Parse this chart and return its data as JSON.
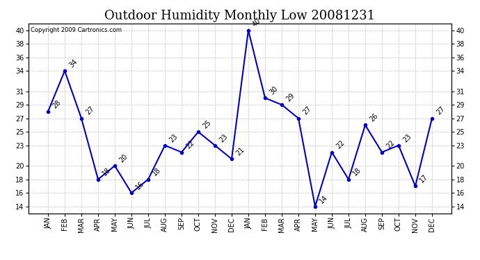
{
  "title": "Outdoor Humidity Monthly Low 20081231",
  "copyright": "Copyright 2009 Cartronics.com",
  "months": [
    "JAN",
    "FEB",
    "MAR",
    "APR",
    "MAY",
    "JUN",
    "JUL",
    "AUG",
    "SEP",
    "OCT",
    "NOV",
    "DEC",
    "JAN",
    "FEB",
    "MAR",
    "APR",
    "MAY",
    "JUN",
    "JUL",
    "AUG",
    "SEP",
    "OCT",
    "NOV",
    "DEC"
  ],
  "values": [
    28,
    34,
    27,
    18,
    20,
    16,
    18,
    23,
    22,
    25,
    23,
    21,
    40,
    30,
    29,
    27,
    14,
    22,
    18,
    26,
    22,
    23,
    17,
    27
  ],
  "ylim": [
    13.0,
    41.0
  ],
  "yticks": [
    14,
    16,
    18,
    20,
    23,
    25,
    27,
    29,
    31,
    34,
    36,
    38,
    40
  ],
  "yticklabels": [
    "14",
    "16",
    "18",
    "20",
    "23",
    "25",
    "27",
    "29",
    "31",
    "34",
    "36",
    "38",
    "40"
  ],
  "right_yticks": [
    14,
    16,
    18,
    20,
    23,
    25,
    27,
    29,
    31,
    34,
    36,
    38,
    40
  ],
  "right_yticklabels": [
    "14",
    "16",
    "18",
    "20",
    "23",
    "25",
    "27",
    "29",
    "31",
    "34",
    "36",
    "38",
    "40"
  ],
  "line_color": "#0000cc",
  "marker_color": "#0000cc",
  "bg_color": "#ffffff",
  "grid_color": "#aaaaaa",
  "title_fontsize": 13,
  "label_fontsize": 7,
  "annotation_fontsize": 7,
  "copyright_fontsize": 6
}
